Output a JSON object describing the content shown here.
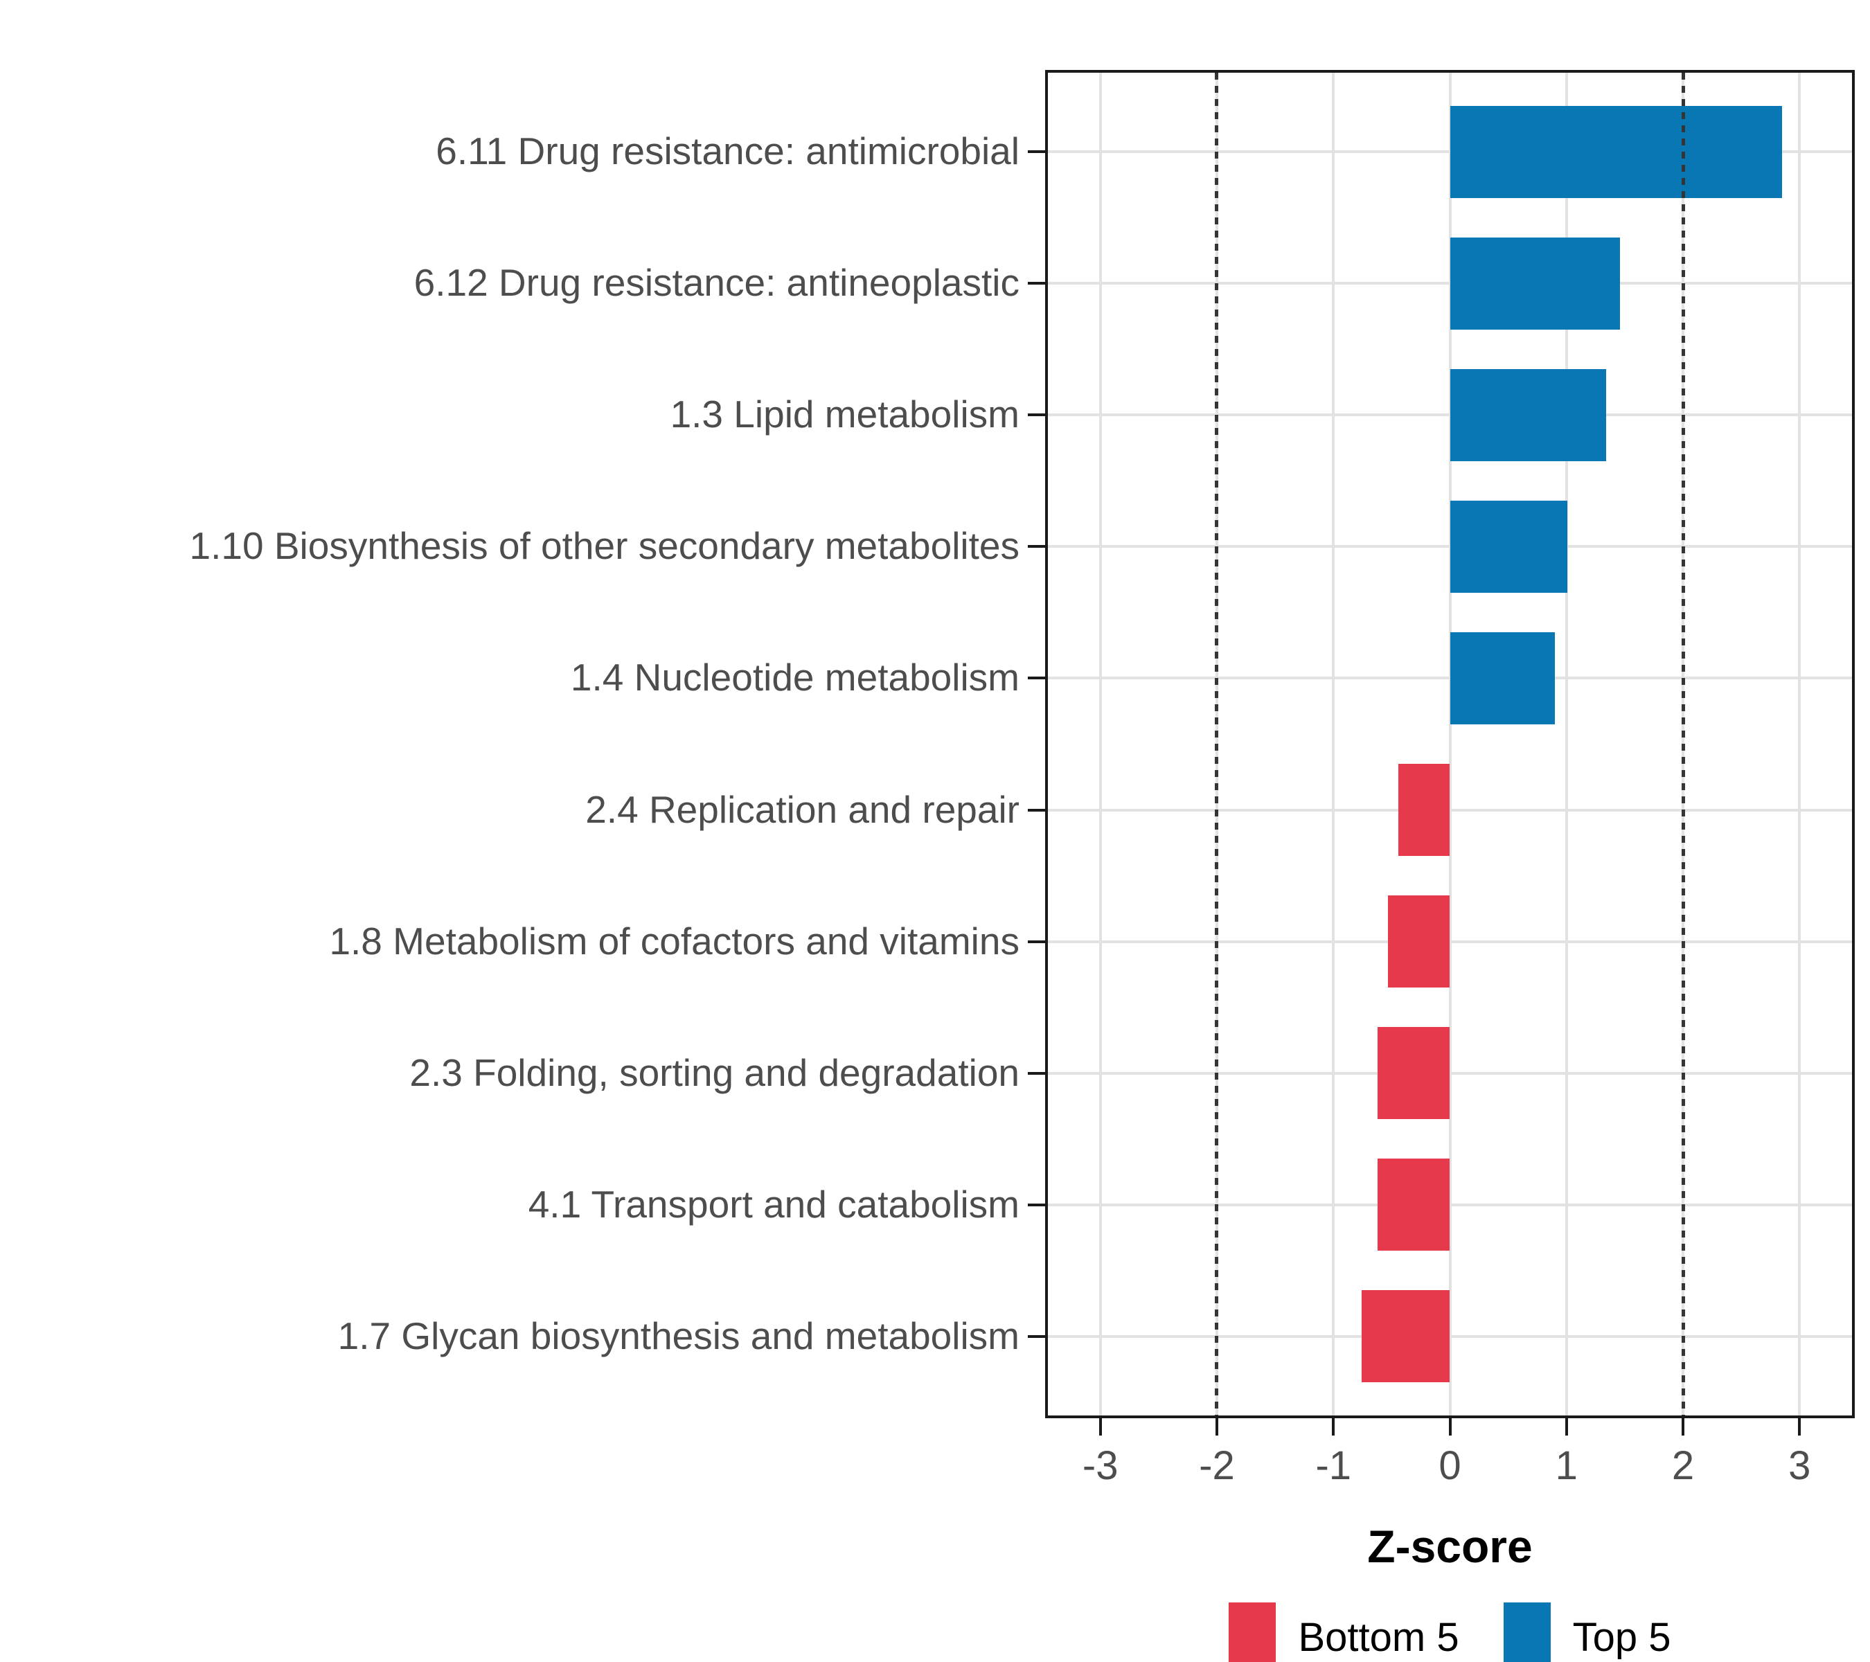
{
  "chart_data": {
    "type": "bar",
    "orientation": "horizontal",
    "xlabel": "Z-score",
    "categories": [
      "6.11 Drug resistance: antimicrobial",
      "6.12 Drug resistance: antineoplastic",
      "1.3 Lipid metabolism",
      "1.10 Biosynthesis of other secondary metabolites",
      "1.4 Nucleotide metabolism",
      "2.4 Replication and repair",
      "1.8 Metabolism of cofactors and vitamins",
      "2.3 Folding, sorting and degradation",
      "4.1 Transport and catabolism",
      "1.7 Glycan biosynthesis and metabolism"
    ],
    "values": [
      2.85,
      1.46,
      1.34,
      1.01,
      0.9,
      -0.44,
      -0.53,
      -0.62,
      -0.62,
      -0.76
    ],
    "groups": [
      "Top 5",
      "Top 5",
      "Top 5",
      "Top 5",
      "Top 5",
      "Bottom 5",
      "Bottom 5",
      "Bottom 5",
      "Bottom 5",
      "Bottom 5"
    ],
    "colors": {
      "Top 5": "#0877b4",
      "Bottom 5": "#e6394b"
    },
    "xlim": [
      -3.45,
      3.45
    ],
    "x_ticks": [
      "-3",
      "-2",
      "-1",
      "0",
      "1",
      "2",
      "3"
    ],
    "x_tick_values": [
      -3,
      -2,
      -1,
      0,
      1,
      2,
      3
    ],
    "reference_lines": [
      -2,
      2
    ],
    "grid": "major vertical at integers, horizontal at category centers, white background",
    "legend_position": "bottom",
    "legend": [
      {
        "label": "Bottom 5",
        "color": "#e6394b"
      },
      {
        "label": "Top 5",
        "color": "#0877b4"
      }
    ],
    "panel_border_color": "#1a1a1a",
    "gridline_color": "#e2e2e2",
    "axis_text_color": "#4d4d4d",
    "reference_line_color": "#353535"
  }
}
